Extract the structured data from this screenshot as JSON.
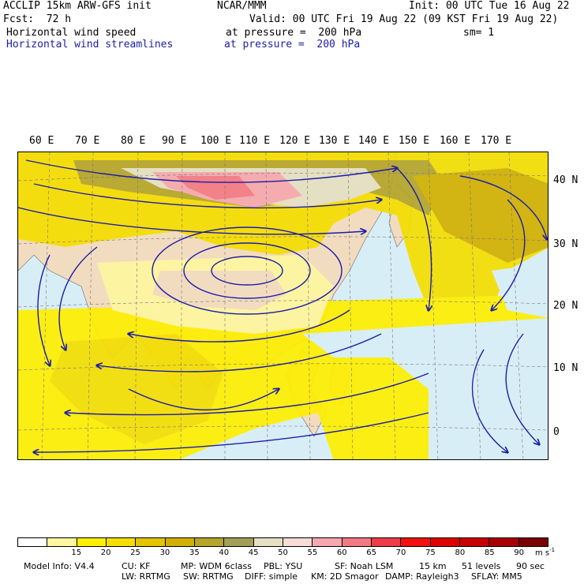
{
  "header": {
    "model": "ACCLIP 15km ARW-GFS init",
    "center": "NCAR/MMM",
    "init": "Init: 00 UTC Tue 16 Aug 22",
    "fcst": "Fcst:  72 h",
    "valid": "Valid: 00 UTC Fri 19 Aug 22 (09 KST Fri 19 Aug 22)",
    "field1": "Horizontal wind speed",
    "field1_level": "at pressure =  200 hPa",
    "sm": "sm= 1",
    "field2": "Horizontal wind streamlines",
    "field2_level": "at pressure =  200 hPa"
  },
  "map": {
    "lon_labels": [
      "60 E",
      "70 E",
      "80 E",
      "90 E",
      "100 E",
      "110 E",
      "120 E",
      "130 E",
      "140 E",
      "150 E",
      "160 E",
      "170 E"
    ],
    "lat_labels": [
      "40 N",
      "30 N",
      "20 N",
      "10 N",
      "0"
    ],
    "colors": {
      "ocean": "#d8eef6",
      "land": "#f2dcc0",
      "coast": "#555555",
      "streamline": "#1c1ca8"
    }
  },
  "colorbar": {
    "labels": [
      "15",
      "20",
      "25",
      "30",
      "35",
      "40",
      "45",
      "50",
      "55",
      "60",
      "65",
      "70",
      "75",
      "80",
      "85",
      "90"
    ],
    "units": "m s",
    "units_exp": "-1",
    "colors": [
      "#ffffff",
      "#fff7a0",
      "#ffee00",
      "#f5de00",
      "#e4c300",
      "#d2b000",
      "#b5a52a",
      "#a39e5a",
      "#e4e0c4",
      "#f8dcd8",
      "#f6a8ae",
      "#f27a84",
      "#f03c48",
      "#f21010",
      "#e00000",
      "#c80000",
      "#a80000",
      "#7a0000"
    ]
  },
  "footer": {
    "line1": [
      "Model Info: V4.4",
      "CU: KF",
      "MP: WDM 6class",
      "PBL: YSU",
      "SF: Noah LSM",
      "15 km",
      "51 levels",
      "90 sec"
    ],
    "line2": [
      "LW: RRTMG",
      "SW: RRTMG",
      "DIFF: simple",
      "KM: 2D Smagor",
      "DAMP: Rayleigh3",
      "SFLAY: MM5"
    ]
  }
}
